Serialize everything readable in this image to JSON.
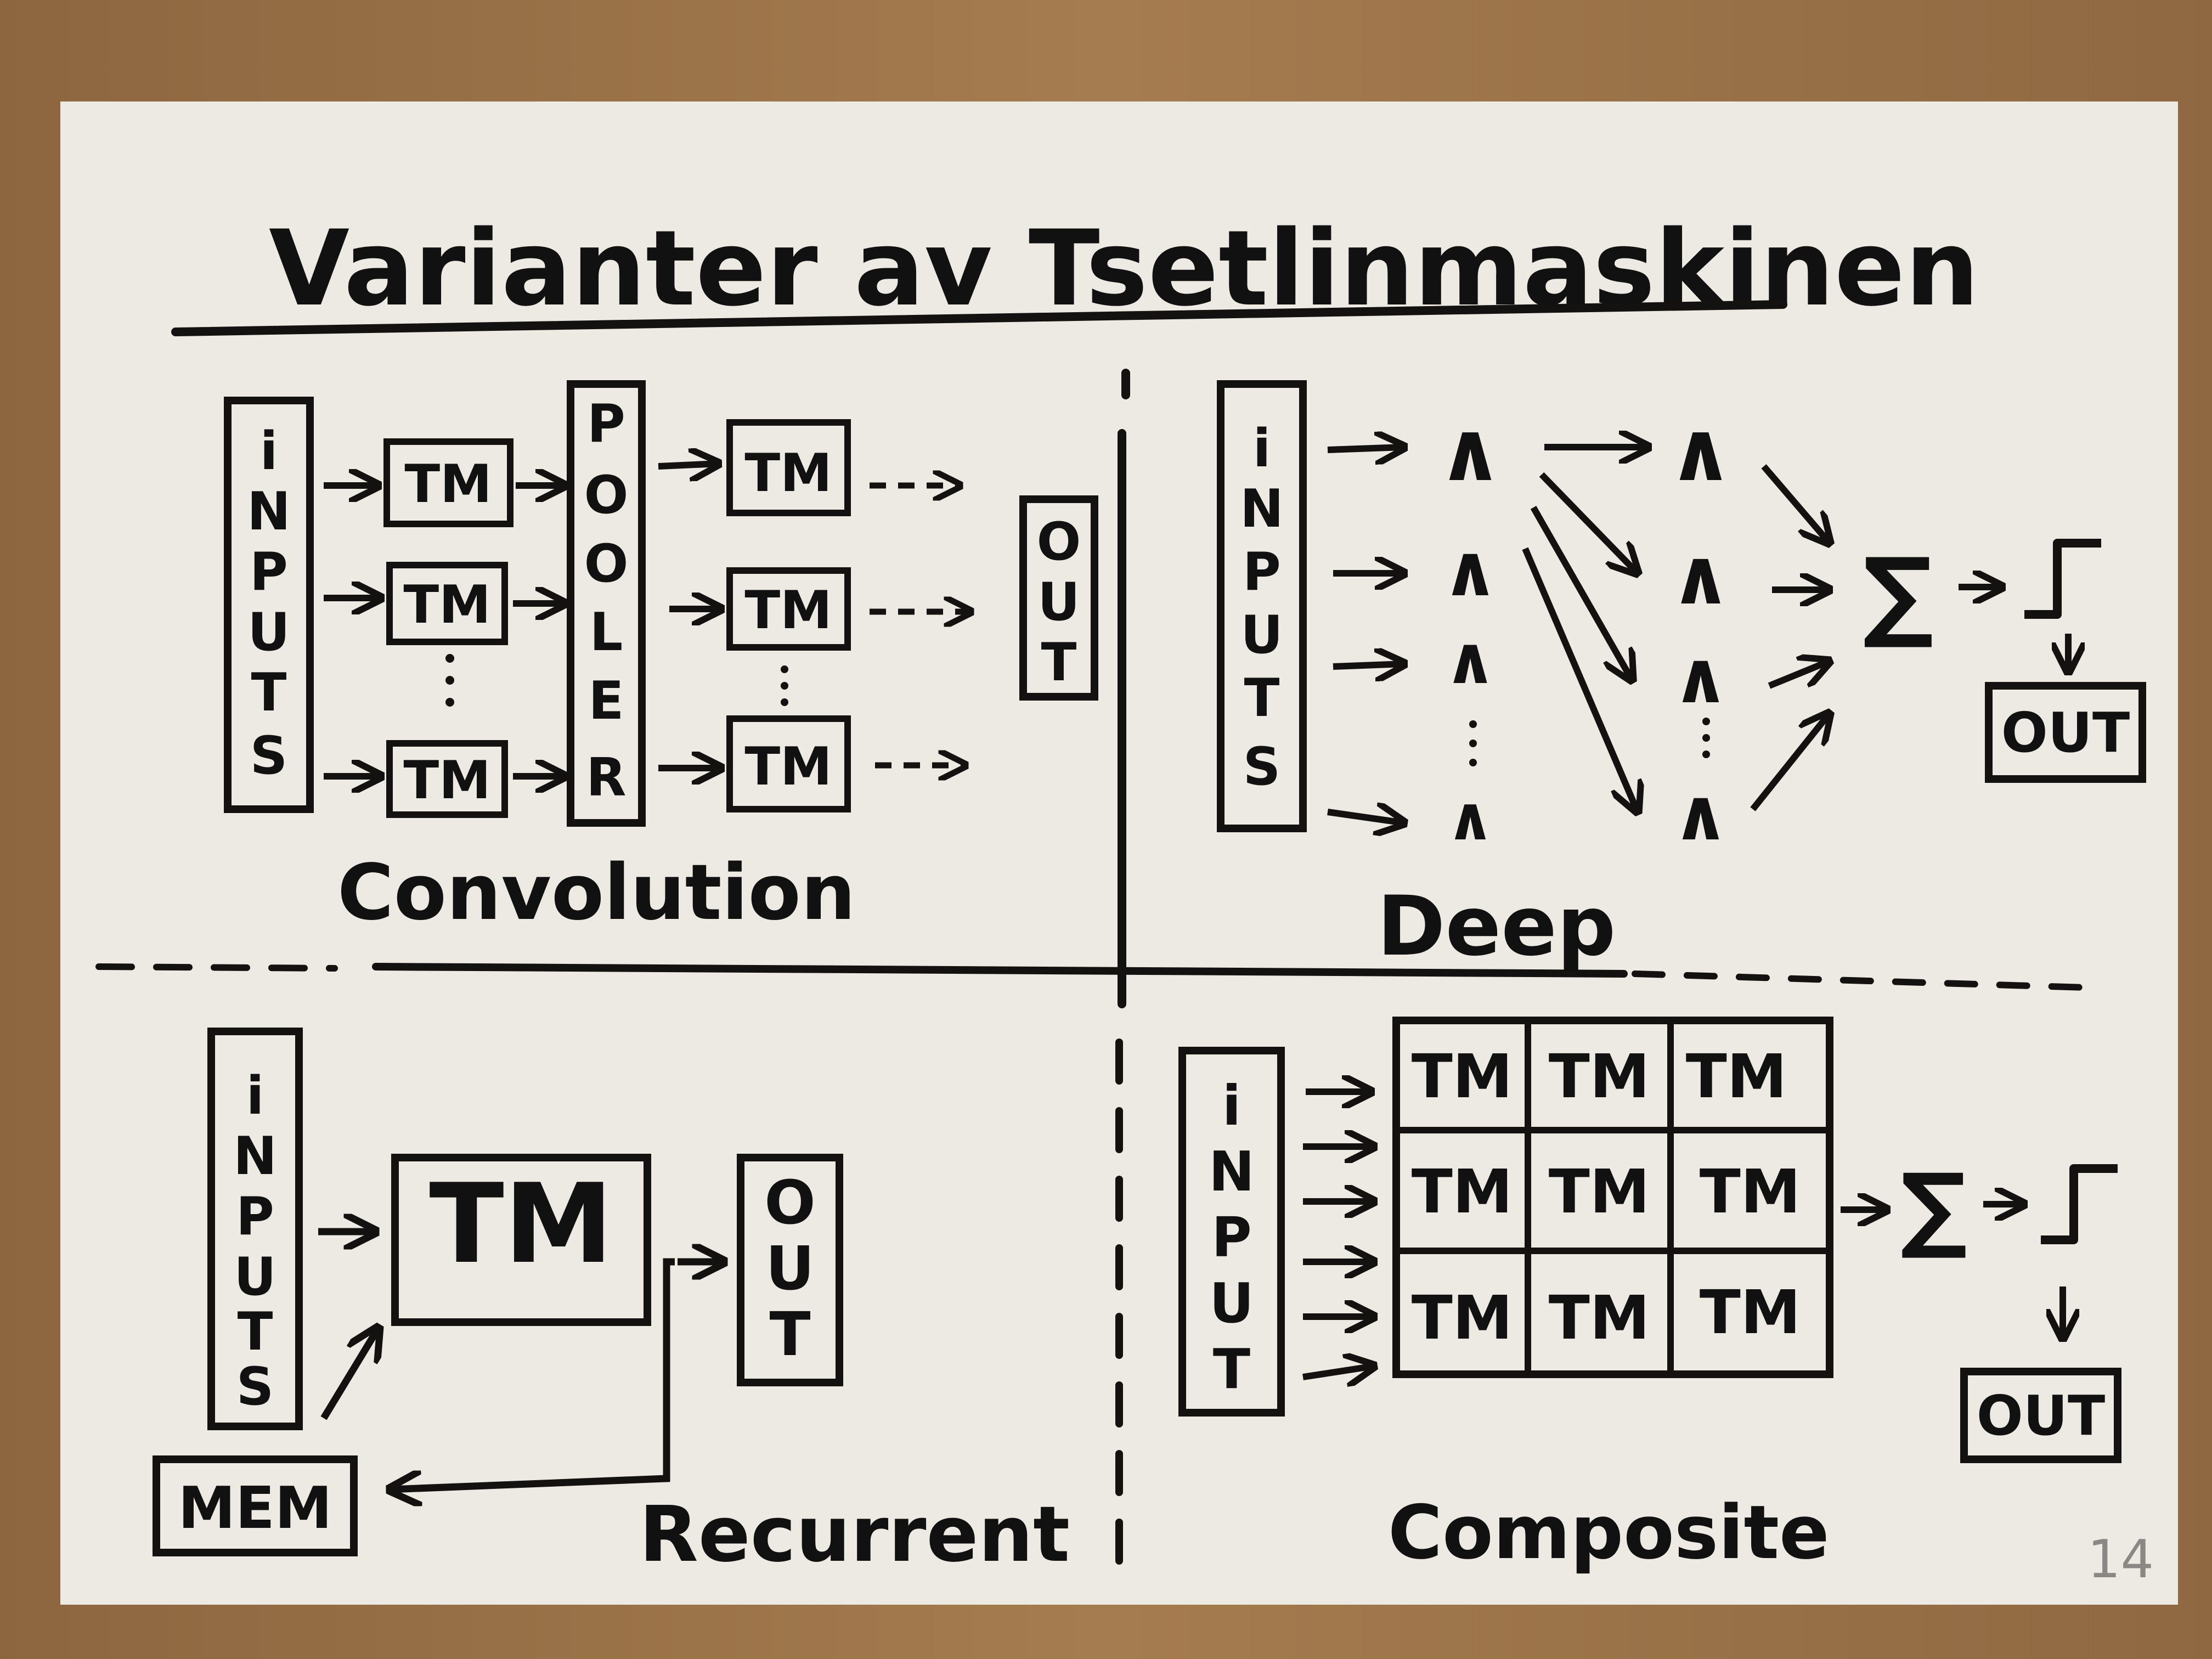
{
  "title": "Varianter av Tsetlinmaskinen",
  "page_number": "14",
  "colors": {
    "ink": "#141210",
    "paper": "#ede9e3",
    "table": "#9c7449",
    "pencil": "#8a8784"
  },
  "convolution": {
    "label": "Convolution",
    "inputs_letters": [
      "i",
      "N",
      "P",
      "U",
      "T",
      "S"
    ],
    "pooler_letters": [
      "P",
      "O",
      "O",
      "L",
      "E",
      "R"
    ],
    "out_letters": [
      "O",
      "U",
      "T"
    ],
    "tm_label": "TM"
  },
  "deep": {
    "label": "Deep",
    "inputs_letters": [
      "i",
      "N",
      "P",
      "U",
      "T",
      "S"
    ],
    "and_symbol": "∧",
    "sum_symbol": "∑",
    "step_symbol": "⎍",
    "out_label": "OUT"
  },
  "recurrent": {
    "label": "Recurrent",
    "inputs_letters": [
      "i",
      "N",
      "P",
      "U",
      "T",
      "S"
    ],
    "tm_label": "TM",
    "out_letters": [
      "O",
      "U",
      "T"
    ],
    "mem_label": "MEM"
  },
  "composite": {
    "label": "Composite",
    "input_letters": [
      "i",
      "N",
      "P",
      "U",
      "T"
    ],
    "grid": [
      [
        "TM",
        "TM",
        "TM"
      ],
      [
        "TM",
        "TM",
        "TM"
      ],
      [
        "TM",
        "TM",
        "TM"
      ]
    ],
    "sum_symbol": "∑",
    "step_symbol": "⎍",
    "out_label": "OUT"
  }
}
